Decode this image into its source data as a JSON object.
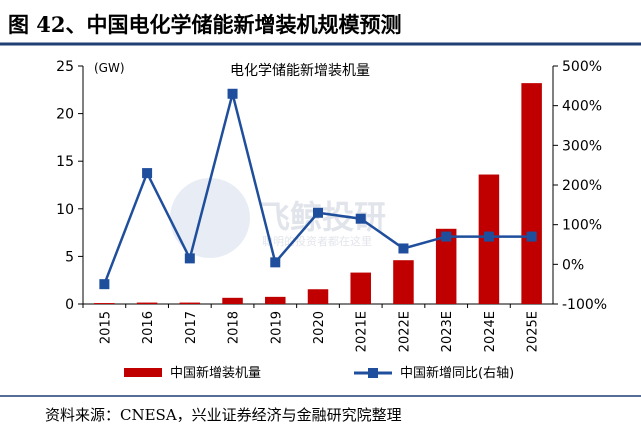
{
  "figure_title": "图 42、中国电化学储能新增装机规模预测",
  "source": "资料来源：CNESA，兴业证券经济与金融研究院整理",
  "watermark": {
    "brand": "飞鲸投研",
    "slogan": "聪明的投资者都在这里"
  },
  "colors": {
    "bar": "#c00000",
    "line": "#1f4e9c",
    "rule": "#1f3f73"
  },
  "chart_data": {
    "type": "bar",
    "title": "电化学储能新增装机量",
    "categories": [
      "2015",
      "2016",
      "2017",
      "2018",
      "2019",
      "2020",
      "2021E",
      "2022E",
      "2023E",
      "2024E",
      "2025E"
    ],
    "series": [
      {
        "name": "中国新增装机量",
        "type": "bar",
        "axis": "left",
        "values": [
          0.1,
          0.15,
          0.15,
          0.65,
          0.75,
          1.55,
          3.3,
          4.6,
          7.9,
          13.6,
          23.2
        ]
      },
      {
        "name": "中国新增同比(右轴)",
        "type": "line",
        "axis": "right",
        "values": [
          -50,
          230,
          15,
          430,
          5,
          130,
          115,
          40,
          70,
          70,
          70
        ]
      }
    ],
    "ylabel": "(GW)",
    "ylim": [
      0,
      25
    ],
    "yticks": [
      "0",
      "5",
      "10",
      "15",
      "20",
      "25"
    ],
    "y2lim": [
      -100,
      500
    ],
    "y2ticks": [
      "-100%",
      "0%",
      "100%",
      "200%",
      "300%",
      "400%",
      "500%"
    ],
    "legend_position": "bottom",
    "grid": false
  }
}
